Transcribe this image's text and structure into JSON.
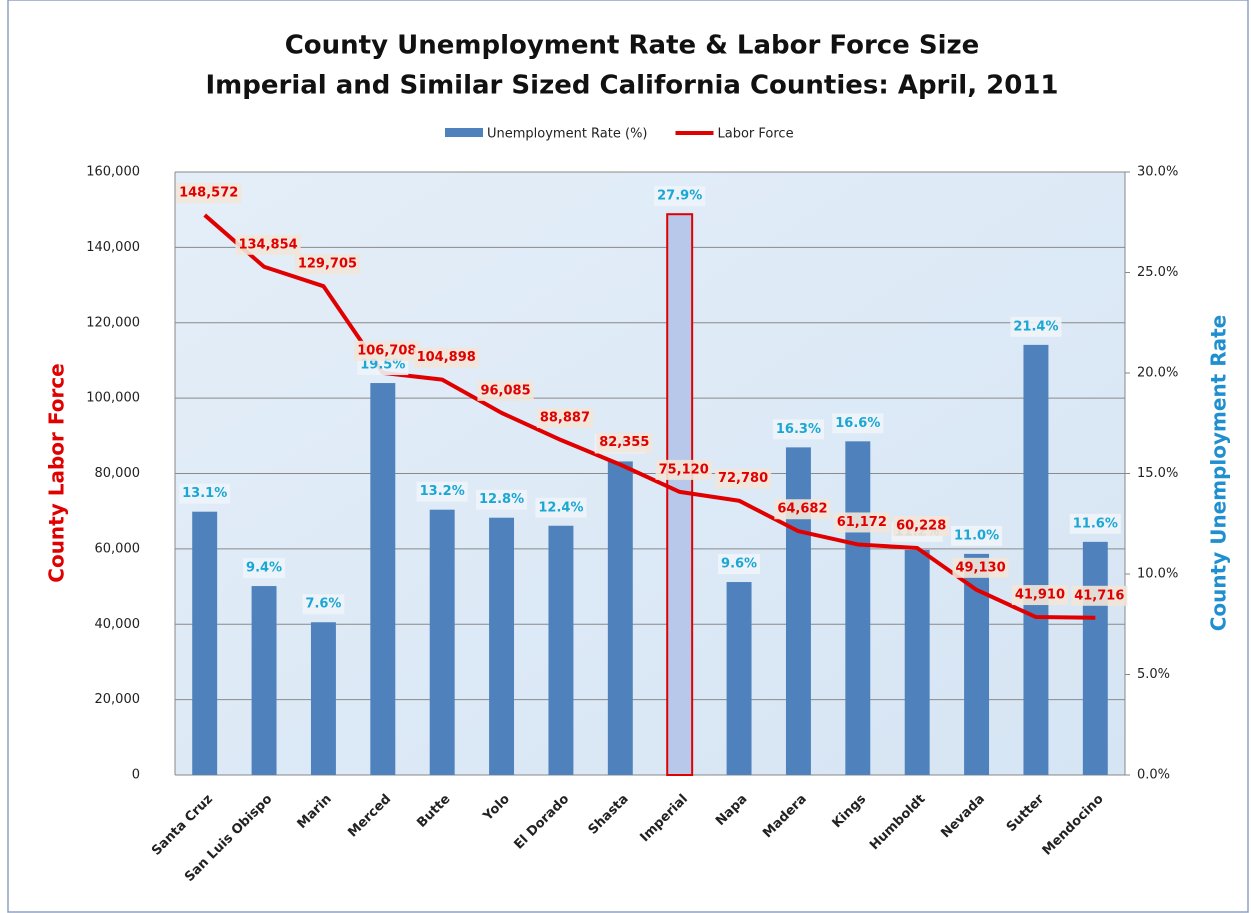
{
  "chart_data": {
    "type": "bar+line",
    "title": "County Unemployment Rate & Labor Force Size",
    "subtitle": "Imperial and Similar Sized California Counties: April, 2011",
    "y_label": "County Labor Force",
    "y2_label": "County Unemployment Rate",
    "categories": [
      "Santa Cruz",
      "San Luis Obispo",
      "Marin",
      "Merced",
      "Butte",
      "Yolo",
      "El Dorado",
      "Shasta",
      "Imperial",
      "Napa",
      "Madera",
      "Kings",
      "Humboldt",
      "Nevada",
      "Sutter",
      "Mendocino"
    ],
    "series": [
      {
        "name": "Unemployment Rate (%)",
        "type": "bar",
        "axis": "y2",
        "color": "#4f81bd",
        "colors": [
          "#4f81bd",
          "#4f81bd",
          "#4f81bd",
          "#4f81bd",
          "#4f81bd",
          "#4f81bd",
          "#4f81bd",
          "#4f81bd",
          "#b8c8ea",
          "#4f81bd",
          "#4f81bd",
          "#4f81bd",
          "#4f81bd",
          "#4f81bd",
          "#4f81bd",
          "#4f81bd"
        ],
        "edgecolors": [
          "none",
          "none",
          "none",
          "none",
          "none",
          "none",
          "none",
          "none",
          "#e00000",
          "none",
          "none",
          "none",
          "none",
          "none",
          "none",
          "none"
        ],
        "label_color": "#1aa7d4",
        "values": [
          13.1,
          9.4,
          7.6,
          19.5,
          13.2,
          12.8,
          12.4,
          15.6,
          27.9,
          9.6,
          16.3,
          16.6,
          11.2,
          11.0,
          21.4,
          11.6
        ],
        "value_labels": [
          "13.1%",
          "9.4%",
          "7.6%",
          "19.5%",
          "13.2%",
          "12.8%",
          "12.4%",
          "15.6%",
          "27.9%",
          "9.6%",
          "16.3%",
          "16.6%",
          "11.2%",
          "11.0%",
          "21.4%",
          "11.6%"
        ]
      },
      {
        "name": "Labor Force",
        "type": "line",
        "axis": "y",
        "color": "#e00000",
        "values": [
          148572,
          134854,
          129705,
          106708,
          104898,
          96085,
          88887,
          82355,
          75120,
          72780,
          64682,
          61172,
          60228,
          49130,
          41910,
          41716
        ],
        "value_labels": [
          "148,572",
          "134,854",
          "129,705",
          "106,708",
          "104,898",
          "96,085",
          "88,887",
          "82,355",
          "75,120",
          "72,780",
          "64,682",
          "61,172",
          "60,228",
          "49,130",
          "41,910",
          "41,716"
        ]
      }
    ],
    "ylim": [
      0,
      160000
    ],
    "yticks": [
      0,
      {
        "value": 20000,
        "label": "20,000"
      },
      {
        "value": 40000,
        "label": "40,000"
      },
      {
        "value": 60000,
        "label": "60,000"
      },
      {
        "value": 80000,
        "label": "80,000"
      },
      {
        "value": 100000,
        "label": "100,000"
      },
      {
        "value": 120000,
        "label": "120,000"
      },
      {
        "value": 140000,
        "label": "140,000"
      },
      {
        "value": 160000,
        "label": "160,000"
      }
    ],
    "y2lim": [
      0,
      30
    ],
    "y2ticks": [
      {
        "value": 0,
        "label": "0.0%"
      },
      {
        "value": 5,
        "label": "5.0%"
      },
      {
        "value": 10,
        "label": "10.0%"
      },
      {
        "value": 15,
        "label": "15.0%"
      },
      {
        "value": 20,
        "label": "20.0%"
      },
      {
        "value": 25,
        "label": "25.0%"
      },
      {
        "value": 30,
        "label": "30.0%"
      }
    ],
    "grid": true,
    "legend": "top"
  }
}
